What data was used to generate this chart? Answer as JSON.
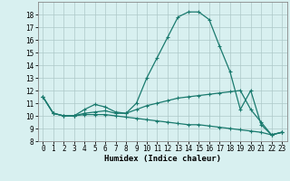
{
  "xlabel": "Humidex (Indice chaleur)",
  "x": [
    0,
    1,
    2,
    3,
    4,
    5,
    6,
    7,
    8,
    9,
    10,
    11,
    12,
    13,
    14,
    15,
    16,
    17,
    18,
    19,
    20,
    21,
    22,
    23
  ],
  "line1": [
    11.5,
    10.2,
    10.0,
    10.0,
    10.5,
    10.9,
    10.7,
    10.3,
    10.2,
    11.0,
    13.0,
    14.6,
    16.2,
    17.8,
    18.2,
    18.2,
    17.6,
    15.5,
    13.5,
    10.5,
    12.0,
    9.3,
    8.5,
    8.7
  ],
  "line2": [
    11.5,
    10.2,
    10.0,
    10.0,
    10.2,
    10.3,
    10.4,
    10.2,
    10.2,
    10.5,
    10.8,
    11.0,
    11.2,
    11.4,
    11.5,
    11.6,
    11.7,
    11.8,
    11.9,
    12.0,
    10.5,
    9.5,
    8.5,
    8.7
  ],
  "line3": [
    11.5,
    10.2,
    10.0,
    10.0,
    10.1,
    10.1,
    10.1,
    10.0,
    9.9,
    9.8,
    9.7,
    9.6,
    9.5,
    9.4,
    9.3,
    9.3,
    9.2,
    9.1,
    9.0,
    8.9,
    8.8,
    8.7,
    8.5,
    8.7
  ],
  "xlim": [
    -0.5,
    23.5
  ],
  "ylim": [
    8,
    19
  ],
  "yticks": [
    8,
    9,
    10,
    11,
    12,
    13,
    14,
    15,
    16,
    17,
    18
  ],
  "xticks": [
    0,
    1,
    2,
    3,
    4,
    5,
    6,
    7,
    8,
    9,
    10,
    11,
    12,
    13,
    14,
    15,
    16,
    17,
    18,
    19,
    20,
    21,
    22,
    23
  ],
  "line_color": "#1a7a6e",
  "bg_color": "#d8f0f0",
  "grid_color": "#adc8c8",
  "marker": "+",
  "tick_fontsize": 5.5,
  "xlabel_fontsize": 6.5
}
